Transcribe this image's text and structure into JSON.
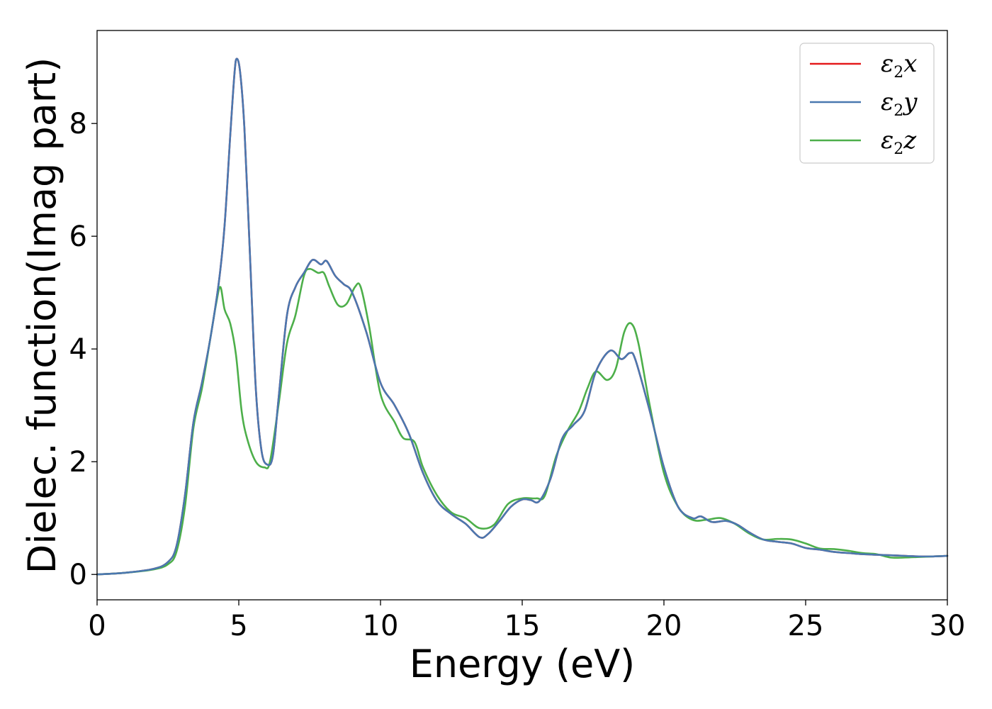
{
  "chart_data": {
    "type": "line",
    "xlabel": "Energy (eV)",
    "ylabel": "Dielec. function(Imag part)",
    "xlim": [
      0,
      30
    ],
    "ylim": [
      -0.45,
      9.65
    ],
    "xticks": [
      0,
      5,
      10,
      15,
      20,
      25,
      30
    ],
    "yticks": [
      0,
      2,
      4,
      6,
      8
    ],
    "grid": false,
    "legend_position": "top-right",
    "series": [
      {
        "name": "ε2x",
        "symbol": "ε",
        "subscript": "2",
        "axis": "x",
        "color": "#e41a1c",
        "points": [
          [
            0,
            0
          ],
          [
            1,
            0.03
          ],
          [
            2,
            0.1
          ],
          [
            2.5,
            0.22
          ],
          [
            2.8,
            0.5
          ],
          [
            3.1,
            1.4
          ],
          [
            3.4,
            2.7
          ],
          [
            3.7,
            3.4
          ],
          [
            4.0,
            4.2
          ],
          [
            4.3,
            5.2
          ],
          [
            4.5,
            6.2
          ],
          [
            4.7,
            7.8
          ],
          [
            4.85,
            8.9
          ],
          [
            4.93,
            9.15
          ],
          [
            5.05,
            8.9
          ],
          [
            5.2,
            7.9
          ],
          [
            5.4,
            5.6
          ],
          [
            5.6,
            3.3
          ],
          [
            5.8,
            2.2
          ],
          [
            6.0,
            1.95
          ],
          [
            6.2,
            2.1
          ],
          [
            6.4,
            3.1
          ],
          [
            6.7,
            4.6
          ],
          [
            7.0,
            5.1
          ],
          [
            7.3,
            5.35
          ],
          [
            7.6,
            5.58
          ],
          [
            7.9,
            5.5
          ],
          [
            8.1,
            5.56
          ],
          [
            8.4,
            5.3
          ],
          [
            8.7,
            5.15
          ],
          [
            9.0,
            5.0
          ],
          [
            9.5,
            4.3
          ],
          [
            10.0,
            3.4
          ],
          [
            10.5,
            3.0
          ],
          [
            11.0,
            2.5
          ],
          [
            11.5,
            1.8
          ],
          [
            12.0,
            1.3
          ],
          [
            12.5,
            1.07
          ],
          [
            13.0,
            0.9
          ],
          [
            13.5,
            0.66
          ],
          [
            13.8,
            0.72
          ],
          [
            14.2,
            0.95
          ],
          [
            14.6,
            1.2
          ],
          [
            15.0,
            1.33
          ],
          [
            15.3,
            1.32
          ],
          [
            15.6,
            1.3
          ],
          [
            16.0,
            1.7
          ],
          [
            16.4,
            2.4
          ],
          [
            16.8,
            2.65
          ],
          [
            17.2,
            2.9
          ],
          [
            17.6,
            3.6
          ],
          [
            18.1,
            3.97
          ],
          [
            18.5,
            3.82
          ],
          [
            18.8,
            3.93
          ],
          [
            19.0,
            3.8
          ],
          [
            19.5,
            2.9
          ],
          [
            20.0,
            1.9
          ],
          [
            20.5,
            1.2
          ],
          [
            21.0,
            1.0
          ],
          [
            21.3,
            1.03
          ],
          [
            21.7,
            0.93
          ],
          [
            22.2,
            0.95
          ],
          [
            22.6,
            0.88
          ],
          [
            23.0,
            0.75
          ],
          [
            23.5,
            0.62
          ],
          [
            24.0,
            0.58
          ],
          [
            24.5,
            0.55
          ],
          [
            25.0,
            0.47
          ],
          [
            25.5,
            0.44
          ],
          [
            26.0,
            0.4
          ],
          [
            26.5,
            0.38
          ],
          [
            27.0,
            0.36
          ],
          [
            27.5,
            0.35
          ],
          [
            28.0,
            0.34
          ],
          [
            28.5,
            0.33
          ],
          [
            29.0,
            0.32
          ],
          [
            29.5,
            0.32
          ],
          [
            30.0,
            0.33
          ]
        ]
      },
      {
        "name": "ε2y",
        "symbol": "ε",
        "subscript": "2",
        "axis": "y",
        "color": "#4a78b0",
        "points": [
          [
            0,
            0
          ],
          [
            1,
            0.03
          ],
          [
            2,
            0.1
          ],
          [
            2.5,
            0.22
          ],
          [
            2.8,
            0.5
          ],
          [
            3.1,
            1.4
          ],
          [
            3.4,
            2.7
          ],
          [
            3.7,
            3.4
          ],
          [
            4.0,
            4.2
          ],
          [
            4.3,
            5.2
          ],
          [
            4.5,
            6.2
          ],
          [
            4.7,
            7.8
          ],
          [
            4.85,
            8.9
          ],
          [
            4.93,
            9.15
          ],
          [
            5.05,
            8.9
          ],
          [
            5.2,
            7.9
          ],
          [
            5.4,
            5.6
          ],
          [
            5.6,
            3.3
          ],
          [
            5.8,
            2.2
          ],
          [
            6.0,
            1.95
          ],
          [
            6.2,
            2.1
          ],
          [
            6.4,
            3.1
          ],
          [
            6.7,
            4.6
          ],
          [
            7.0,
            5.1
          ],
          [
            7.3,
            5.35
          ],
          [
            7.6,
            5.58
          ],
          [
            7.9,
            5.5
          ],
          [
            8.1,
            5.56
          ],
          [
            8.4,
            5.3
          ],
          [
            8.7,
            5.15
          ],
          [
            9.0,
            5.0
          ],
          [
            9.5,
            4.3
          ],
          [
            10.0,
            3.4
          ],
          [
            10.5,
            3.0
          ],
          [
            11.0,
            2.5
          ],
          [
            11.5,
            1.8
          ],
          [
            12.0,
            1.3
          ],
          [
            12.5,
            1.07
          ],
          [
            13.0,
            0.9
          ],
          [
            13.5,
            0.66
          ],
          [
            13.8,
            0.72
          ],
          [
            14.2,
            0.95
          ],
          [
            14.6,
            1.2
          ],
          [
            15.0,
            1.33
          ],
          [
            15.3,
            1.32
          ],
          [
            15.6,
            1.3
          ],
          [
            16.0,
            1.7
          ],
          [
            16.4,
            2.4
          ],
          [
            16.8,
            2.65
          ],
          [
            17.2,
            2.9
          ],
          [
            17.6,
            3.6
          ],
          [
            18.1,
            3.97
          ],
          [
            18.5,
            3.82
          ],
          [
            18.8,
            3.93
          ],
          [
            19.0,
            3.8
          ],
          [
            19.5,
            2.9
          ],
          [
            20.0,
            1.9
          ],
          [
            20.5,
            1.2
          ],
          [
            21.0,
            1.0
          ],
          [
            21.3,
            1.03
          ],
          [
            21.7,
            0.93
          ],
          [
            22.2,
            0.95
          ],
          [
            22.6,
            0.88
          ],
          [
            23.0,
            0.75
          ],
          [
            23.5,
            0.62
          ],
          [
            24.0,
            0.58
          ],
          [
            24.5,
            0.55
          ],
          [
            25.0,
            0.47
          ],
          [
            25.5,
            0.44
          ],
          [
            26.0,
            0.4
          ],
          [
            26.5,
            0.38
          ],
          [
            27.0,
            0.36
          ],
          [
            27.5,
            0.35
          ],
          [
            28.0,
            0.34
          ],
          [
            28.5,
            0.33
          ],
          [
            29.0,
            0.32
          ],
          [
            29.5,
            0.32
          ],
          [
            30.0,
            0.33
          ]
        ]
      },
      {
        "name": "ε2z",
        "symbol": "ε",
        "subscript": "2",
        "axis": "z",
        "color": "#4daf4a",
        "points": [
          [
            0,
            0
          ],
          [
            1,
            0.03
          ],
          [
            2,
            0.09
          ],
          [
            2.5,
            0.18
          ],
          [
            2.8,
            0.4
          ],
          [
            3.1,
            1.2
          ],
          [
            3.4,
            2.6
          ],
          [
            3.7,
            3.3
          ],
          [
            4.0,
            4.2
          ],
          [
            4.2,
            4.8
          ],
          [
            4.35,
            5.1
          ],
          [
            4.5,
            4.7
          ],
          [
            4.7,
            4.45
          ],
          [
            4.9,
            3.9
          ],
          [
            5.1,
            2.9
          ],
          [
            5.3,
            2.4
          ],
          [
            5.6,
            2.0
          ],
          [
            5.9,
            1.9
          ],
          [
            6.1,
            2.0
          ],
          [
            6.4,
            3.0
          ],
          [
            6.7,
            4.1
          ],
          [
            7.0,
            4.6
          ],
          [
            7.3,
            5.3
          ],
          [
            7.5,
            5.42
          ],
          [
            7.8,
            5.35
          ],
          [
            8.0,
            5.35
          ],
          [
            8.2,
            5.1
          ],
          [
            8.5,
            4.78
          ],
          [
            8.8,
            4.8
          ],
          [
            9.1,
            5.1
          ],
          [
            9.3,
            5.1
          ],
          [
            9.6,
            4.4
          ],
          [
            10.0,
            3.2
          ],
          [
            10.5,
            2.7
          ],
          [
            10.8,
            2.42
          ],
          [
            11.2,
            2.35
          ],
          [
            11.5,
            1.9
          ],
          [
            12.0,
            1.4
          ],
          [
            12.5,
            1.1
          ],
          [
            13.0,
            1.0
          ],
          [
            13.5,
            0.82
          ],
          [
            14.0,
            0.88
          ],
          [
            14.5,
            1.25
          ],
          [
            15.0,
            1.35
          ],
          [
            15.5,
            1.35
          ],
          [
            15.8,
            1.4
          ],
          [
            16.2,
            2.1
          ],
          [
            16.6,
            2.55
          ],
          [
            17.0,
            2.9
          ],
          [
            17.3,
            3.3
          ],
          [
            17.6,
            3.6
          ],
          [
            18.0,
            3.45
          ],
          [
            18.3,
            3.65
          ],
          [
            18.6,
            4.3
          ],
          [
            18.85,
            4.45
          ],
          [
            19.1,
            4.1
          ],
          [
            19.5,
            3.0
          ],
          [
            20.0,
            1.8
          ],
          [
            20.5,
            1.2
          ],
          [
            21.0,
            0.97
          ],
          [
            21.5,
            0.97
          ],
          [
            22.0,
            1.0
          ],
          [
            22.5,
            0.9
          ],
          [
            23.0,
            0.73
          ],
          [
            23.5,
            0.62
          ],
          [
            24.0,
            0.63
          ],
          [
            24.5,
            0.62
          ],
          [
            25.0,
            0.55
          ],
          [
            25.5,
            0.46
          ],
          [
            26.0,
            0.45
          ],
          [
            26.5,
            0.42
          ],
          [
            27.0,
            0.38
          ],
          [
            27.5,
            0.36
          ],
          [
            28.0,
            0.3
          ],
          [
            28.5,
            0.3
          ],
          [
            29.0,
            0.31
          ],
          [
            29.5,
            0.32
          ],
          [
            30.0,
            0.33
          ]
        ]
      }
    ]
  }
}
